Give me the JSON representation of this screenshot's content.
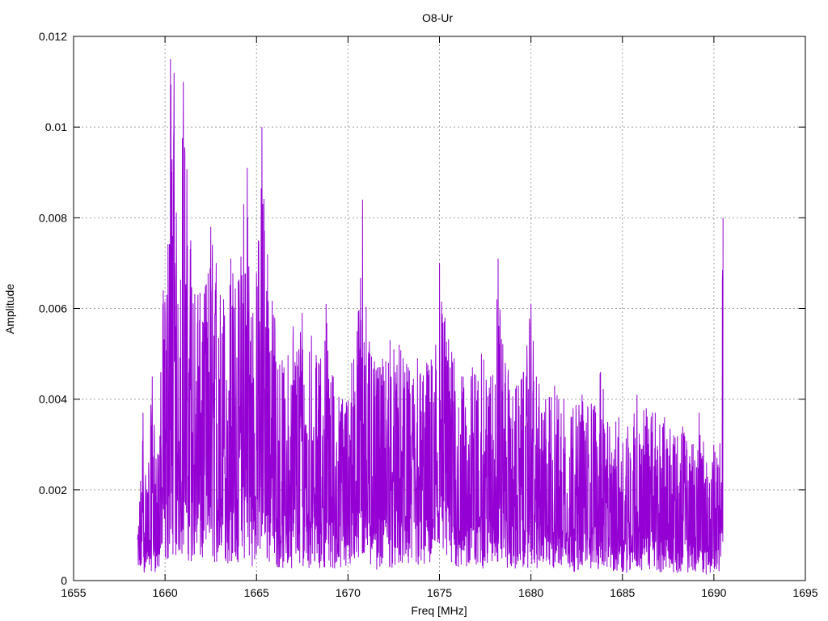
{
  "chart_data": {
    "type": "line",
    "title": "O8-Ur",
    "xlabel": "Freq [MHz]",
    "ylabel": "Amplitude",
    "xlim": [
      1655,
      1695
    ],
    "ylim": [
      0,
      0.012
    ],
    "x_ticks": [
      "1655",
      "1660",
      "1665",
      "1670",
      "1675",
      "1680",
      "1685",
      "1690",
      "1695"
    ],
    "y_ticks": [
      "0",
      "0.002",
      "0.004",
      "0.006",
      "0.008",
      "0.01",
      "0.012"
    ],
    "grid": true,
    "grid_style": "dotted",
    "legend": "none",
    "series": [
      {
        "color": "#9400d3",
        "x_start": 1658.5,
        "x_end": 1690.5,
        "envelope_points": [
          [
            1658.5,
            0.0009
          ],
          [
            1658.8,
            0.0037
          ],
          [
            1659.0,
            0.002
          ],
          [
            1659.3,
            0.0045
          ],
          [
            1659.6,
            0.0028
          ],
          [
            1659.9,
            0.0064
          ],
          [
            1660.1,
            0.0063
          ],
          [
            1660.3,
            0.0115
          ],
          [
            1660.5,
            0.0112
          ],
          [
            1660.7,
            0.0061
          ],
          [
            1661.0,
            0.011
          ],
          [
            1661.4,
            0.0075
          ],
          [
            1661.8,
            0.0063
          ],
          [
            1662.2,
            0.0065
          ],
          [
            1662.5,
            0.0078
          ],
          [
            1662.8,
            0.007
          ],
          [
            1663.2,
            0.0062
          ],
          [
            1663.6,
            0.0071
          ],
          [
            1664.0,
            0.0066
          ],
          [
            1664.3,
            0.0083
          ],
          [
            1664.5,
            0.0091
          ],
          [
            1664.8,
            0.0059
          ],
          [
            1665.1,
            0.0075
          ],
          [
            1665.3,
            0.01
          ],
          [
            1665.6,
            0.0072
          ],
          [
            1666.0,
            0.0058
          ],
          [
            1666.5,
            0.0047
          ],
          [
            1667.0,
            0.0056
          ],
          [
            1667.5,
            0.0059
          ],
          [
            1668.0,
            0.0054
          ],
          [
            1668.4,
            0.0048
          ],
          [
            1668.8,
            0.0061
          ],
          [
            1669.2,
            0.0045
          ],
          [
            1669.7,
            0.004
          ],
          [
            1670.2,
            0.0048
          ],
          [
            1670.5,
            0.0055
          ],
          [
            1670.8,
            0.0084
          ],
          [
            1671.2,
            0.005
          ],
          [
            1671.7,
            0.0047
          ],
          [
            1672.3,
            0.0053
          ],
          [
            1672.8,
            0.0052
          ],
          [
            1673.3,
            0.0047
          ],
          [
            1673.8,
            0.0049
          ],
          [
            1674.3,
            0.0048
          ],
          [
            1674.8,
            0.0052
          ],
          [
            1675.0,
            0.007
          ],
          [
            1675.3,
            0.0058
          ],
          [
            1675.8,
            0.0049
          ],
          [
            1676.3,
            0.0045
          ],
          [
            1676.8,
            0.0047
          ],
          [
            1677.3,
            0.005
          ],
          [
            1677.8,
            0.0045
          ],
          [
            1678.2,
            0.0071
          ],
          [
            1678.6,
            0.0048
          ],
          [
            1679.2,
            0.0043
          ],
          [
            1679.6,
            0.0046
          ],
          [
            1680.0,
            0.0061
          ],
          [
            1680.3,
            0.0045
          ],
          [
            1680.8,
            0.004
          ],
          [
            1681.3,
            0.0043
          ],
          [
            1681.8,
            0.004
          ],
          [
            1682.3,
            0.0038
          ],
          [
            1682.8,
            0.0041
          ],
          [
            1683.3,
            0.0039
          ],
          [
            1683.8,
            0.0046
          ],
          [
            1684.3,
            0.0034
          ],
          [
            1684.8,
            0.0036
          ],
          [
            1685.3,
            0.0034
          ],
          [
            1685.8,
            0.0041
          ],
          [
            1686.3,
            0.0038
          ],
          [
            1686.8,
            0.0037
          ],
          [
            1687.3,
            0.0036
          ],
          [
            1687.8,
            0.0032
          ],
          [
            1688.3,
            0.0034
          ],
          [
            1688.8,
            0.003
          ],
          [
            1689.2,
            0.0037
          ],
          [
            1689.6,
            0.0026
          ],
          [
            1690.0,
            0.003
          ],
          [
            1690.3,
            0.0025
          ],
          [
            1690.5,
            0.008
          ]
        ]
      }
    ]
  }
}
